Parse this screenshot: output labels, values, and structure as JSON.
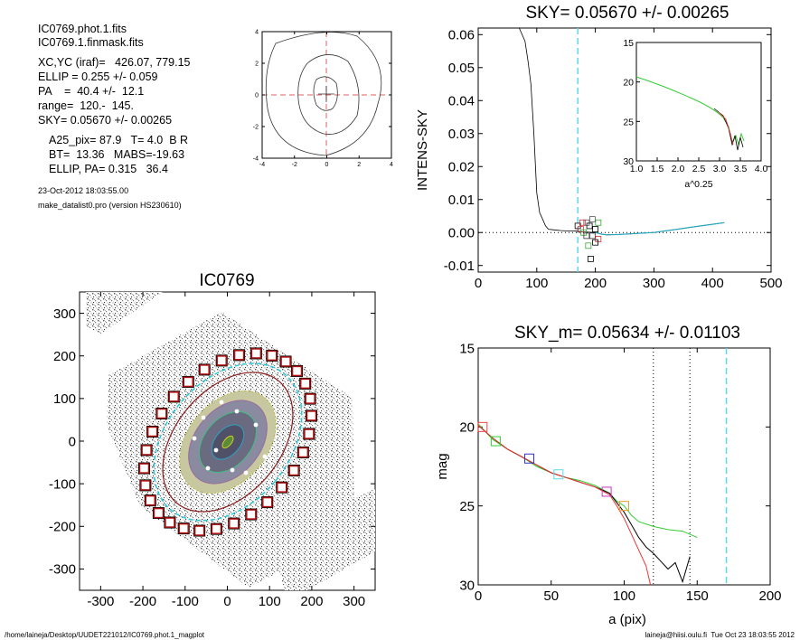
{
  "header": {
    "line1": "IC0769.phot.1.fits",
    "line2": "IC0769.1.finmask.fits",
    "line3": "XC,YC (iraf)=   426.07, 779.15",
    "line4": "ELLIP = 0.255 +/- 0.059",
    "line5": "PA    =  40.4 +/-  12.1",
    "line6": "range=  120.-  145.",
    "line7": "SKY= 0.05670 +/- 0.00265",
    "line8": "A25_pix= 87.9   T= 4.0  B R",
    "line9": "BT=  13.36   MABS=-19.63",
    "line10": "ELLIP, PA= 0.315   36.4",
    "date": "23-Oct-2012 18:03:55.00",
    "program": "make_datalist0.pro (version HS230610)"
  },
  "footer": {
    "path": "/home/laineja/Desktop/UUDET221012/IC0769.phot.1_magplot",
    "user": "laineja@hiisi.oulu.fi  Tue Oct 23 18:03:55 2012"
  },
  "chart_data": [
    {
      "type": "line",
      "panel": "contour",
      "title": "",
      "xlim": [
        -4,
        4
      ],
      "ylim": [
        -4,
        4
      ],
      "xticks": [
        "-4",
        "-2",
        "0",
        "2",
        "4"
      ],
      "yticks": [
        "-4",
        "-2",
        "0",
        "2",
        "4"
      ],
      "center_crosshair": "red dashed lines through 0,0"
    },
    {
      "type": "line",
      "panel": "sky",
      "title": "SKY= 0.05670 +/- 0.00265",
      "ylabel": "INTENS-SKY",
      "xlim": [
        0,
        500
      ],
      "ylim": [
        -0.012,
        0.062
      ],
      "xticks": [
        "0",
        "100",
        "200",
        "300",
        "400",
        "500"
      ],
      "yticks": [
        "-0.01",
        "0.00",
        "0.01",
        "0.02",
        "0.03",
        "0.04",
        "0.05",
        "0.06"
      ],
      "profile": {
        "x": [
          70,
          80,
          85,
          90,
          95,
          100,
          105,
          110,
          115,
          120,
          130,
          140,
          150,
          160,
          170,
          180,
          190,
          200,
          210,
          220,
          240,
          260,
          280,
          300,
          320,
          340,
          360,
          380,
          400,
          420
        ],
        "y": [
          0.062,
          0.058,
          0.052,
          0.045,
          0.03,
          0.012,
          0.006,
          0.004,
          0.002,
          0.001,
          0.0008,
          0.0006,
          0.0005,
          0.0005,
          0.0004,
          0.0002,
          0.0001,
          0.0,
          -0.0005,
          -0.0007,
          -0.0006,
          -0.0004,
          -0.0002,
          0.0,
          0.0005,
          0.001,
          0.0015,
          0.002,
          0.0025,
          0.003
        ]
      },
      "sky_line_x": 170,
      "inset": {
        "xlabel": "a^0.25",
        "xlim": [
          1.0,
          4.0
        ],
        "ylim": [
          15,
          30
        ],
        "xticks": [
          "1.0",
          "1.5",
          "2.0",
          "2.5",
          "3.0",
          "3.5",
          "4.0"
        ],
        "yticks": [
          "15",
          "20",
          "25",
          "30"
        ]
      }
    },
    {
      "type": "scatter",
      "panel": "image",
      "title": "IC0769",
      "xlim": [
        -350,
        350
      ],
      "ylim": [
        -350,
        350
      ],
      "xticks": [
        "-300",
        "-200",
        "-100",
        "0",
        "100",
        "200",
        "300"
      ],
      "yticks": [
        "-300",
        "-200",
        "-100",
        "0",
        "100",
        "200",
        "300"
      ],
      "ellipse_pa_deg": 40.4,
      "ellipse_ellip": 0.255
    },
    {
      "type": "line",
      "panel": "mag",
      "title": "SKY_m=  0.05634 +/- 0.01103",
      "xlabel": "a (pix)",
      "ylabel": "mag",
      "xlim": [
        0,
        200
      ],
      "ylim": [
        15,
        30
      ],
      "xticks": [
        "0",
        "50",
        "100",
        "150",
        "200"
      ],
      "yticks": [
        "15",
        "20",
        "25",
        "30"
      ],
      "green": {
        "x": [
          0,
          5,
          10,
          20,
          30,
          40,
          50,
          60,
          70,
          80,
          90,
          95,
          100,
          105,
          110,
          120,
          130,
          140,
          145,
          150
        ],
        "y": [
          19.8,
          20.3,
          20.8,
          21.4,
          21.9,
          22.5,
          22.9,
          23.2,
          23.4,
          23.7,
          24.2,
          24.7,
          25.0,
          25.6,
          26.0,
          26.3,
          26.5,
          26.6,
          26.8,
          27.0
        ]
      },
      "black": {
        "x": [
          0,
          10,
          20,
          30,
          40,
          50,
          60,
          70,
          80,
          90,
          95,
          100,
          105,
          110,
          115,
          120,
          125,
          130,
          135,
          140,
          145
        ],
        "y": [
          19.9,
          20.7,
          21.4,
          21.9,
          22.4,
          22.9,
          23.2,
          23.5,
          23.8,
          24.2,
          24.8,
          25.4,
          26.2,
          27.0,
          27.6,
          28.0,
          28.5,
          29.0,
          28.6,
          29.8,
          28.2
        ]
      },
      "red": {
        "x": [
          0,
          10,
          20,
          30,
          40,
          50,
          60,
          70,
          80,
          90,
          95,
          100,
          105,
          110,
          115,
          118
        ],
        "y": [
          19.9,
          20.7,
          21.4,
          21.9,
          22.4,
          22.9,
          23.2,
          23.5,
          23.8,
          24.3,
          25.0,
          25.8,
          26.8,
          27.8,
          28.8,
          30.0
        ]
      },
      "dotted_x": [
        120,
        145
      ],
      "cyan_x": 170
    }
  ]
}
